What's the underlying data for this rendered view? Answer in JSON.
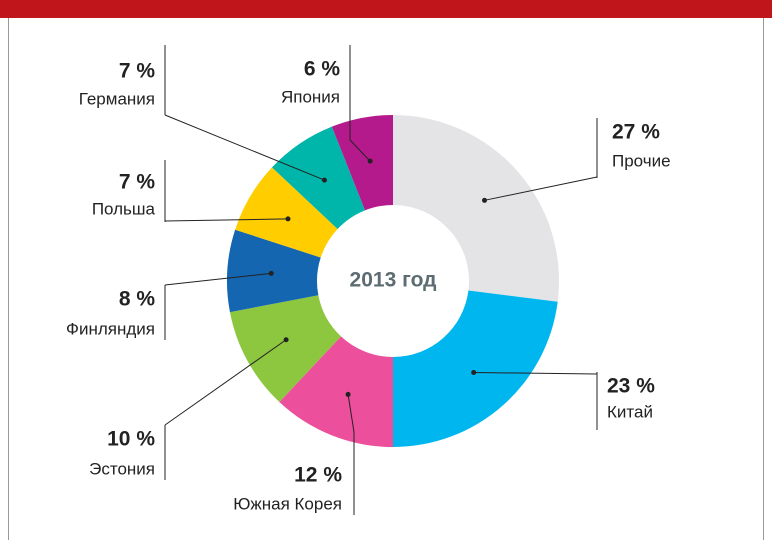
{
  "chart_data": {
    "type": "donut",
    "center_label": "2013 год",
    "categories": [
      "Прочие",
      "Китай",
      "Южная Корея",
      "Эстония",
      "Финляндия",
      "Польша",
      "Германия",
      "Япония"
    ],
    "values": [
      27,
      23,
      12,
      10,
      8,
      7,
      7,
      6
    ],
    "value_labels": [
      "27 %",
      "23 %",
      "12 %",
      "10 %",
      "8 %",
      "7 %",
      "7 %",
      "6 %"
    ],
    "colors": [
      "#e4e4e6",
      "#00b6ef",
      "#ec509c",
      "#8dc63f",
      "#1566b1",
      "#ffcd00",
      "#00b5aa",
      "#b41a8c"
    ]
  }
}
